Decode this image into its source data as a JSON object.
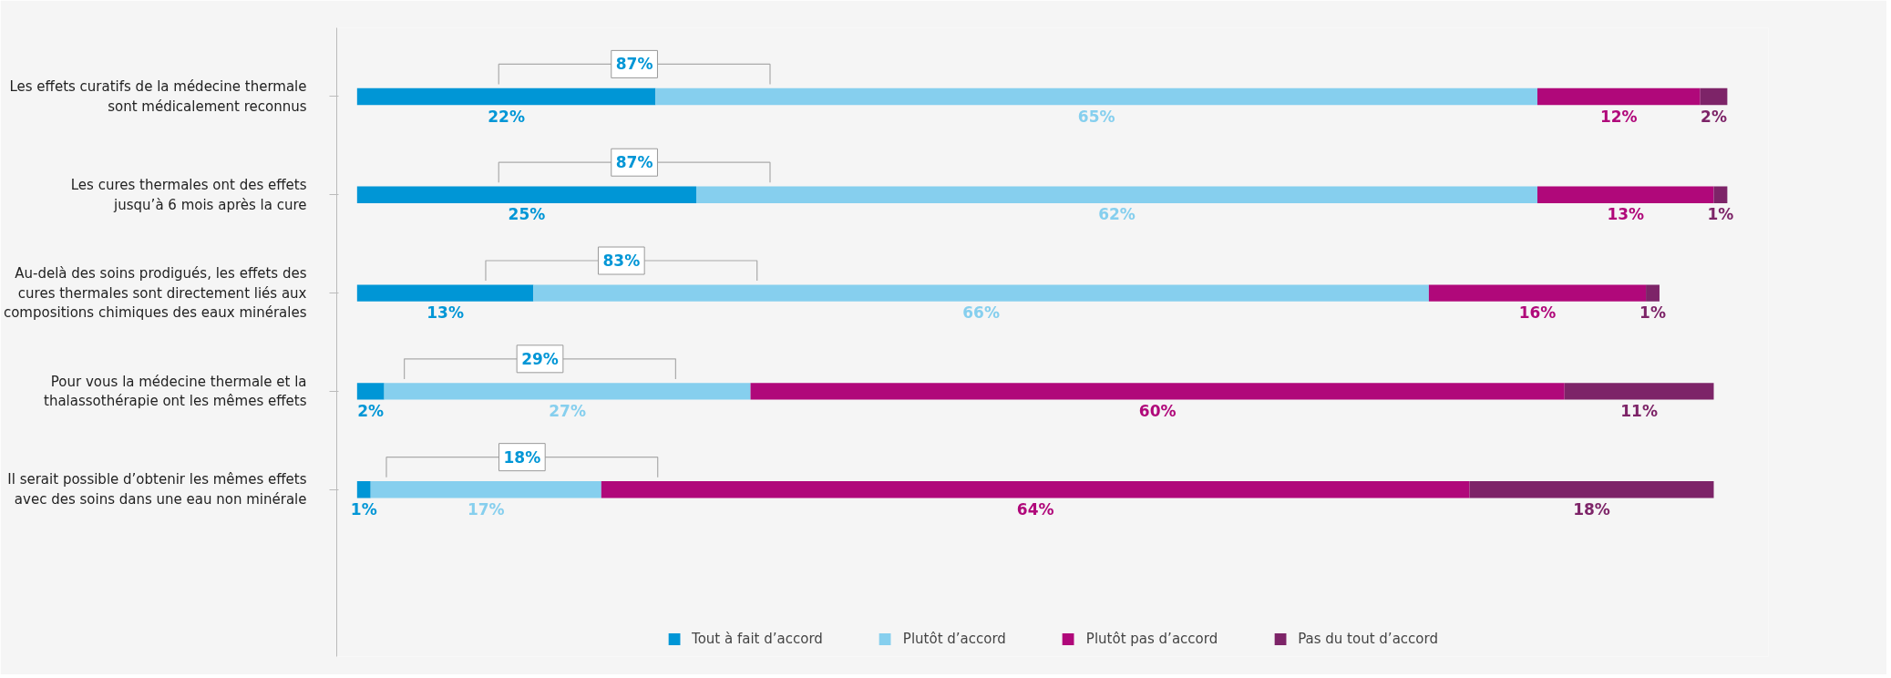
{
  "chart_data": {
    "type": "bar",
    "orientation": "horizontal",
    "stacked": true,
    "legend": "bottom",
    "grid": false,
    "tick_labels": "y",
    "categories": [
      "Les effets curatifs de la médecine thermale\nsont médicalement reconnus",
      "Les cures thermales ont des effets\njusqu’à 6 mois après la cure",
      "Au-delà des soins prodigués, les effets des\ncures thermales sont directement liés aux\ncompositions chimiques des eaux minérales",
      "Pour vous la médecine thermale et la\nthalassothérapie ont les mêmes effets",
      "Il serait possible d’obtenir les mêmes effets\navec des soins dans une eau non minérale"
    ],
    "series": [
      {
        "name": "Tout à fait d’accord",
        "color": "#0096d6",
        "values": [
          22,
          25,
          13,
          2,
          1
        ],
        "value_labels": [
          "22%",
          "25%",
          "13%",
          "2%",
          "1%"
        ]
      },
      {
        "name": "Plutôt d’accord",
        "color": "#86cfee",
        "values": [
          65,
          62,
          66,
          27,
          17
        ],
        "value_labels": [
          "65%",
          "62%",
          "66%",
          "27%",
          "17%"
        ]
      },
      {
        "name": "Plutôt pas d’accord",
        "color": "#b0087a",
        "values": [
          12,
          13,
          16,
          60,
          64
        ],
        "value_labels": [
          "12%",
          "13%",
          "16%",
          "60%",
          "64%"
        ]
      },
      {
        "name": "Pas du tout d’accord",
        "color": "#7d2468",
        "values": [
          2,
          1,
          1,
          11,
          18
        ],
        "value_labels": [
          "2%",
          "1%",
          "1%",
          "11%",
          "18%"
        ]
      }
    ],
    "annotations": [
      "87%",
      "87%",
      "83%",
      "29%",
      "18%"
    ]
  }
}
